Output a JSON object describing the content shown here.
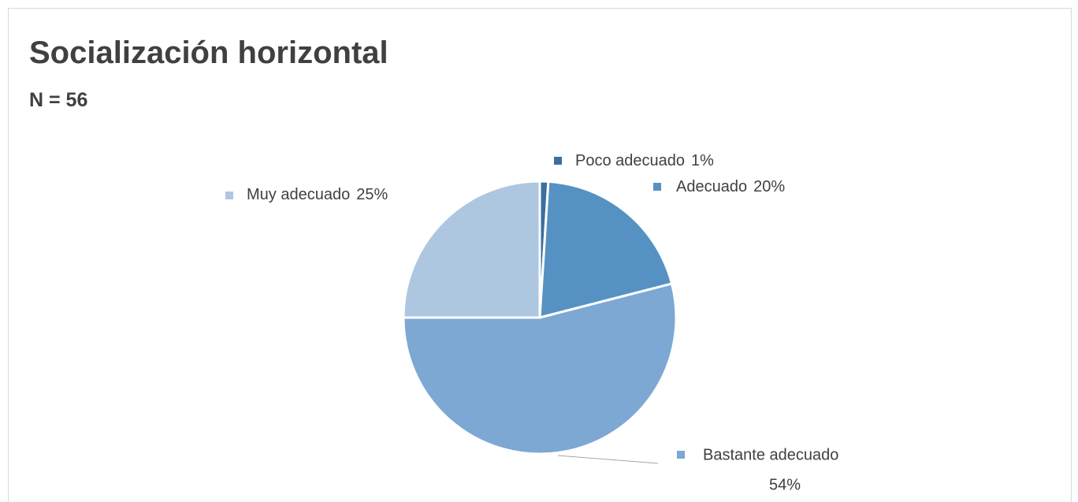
{
  "chart_data": {
    "type": "pie",
    "title": "Socialización horizontal",
    "subtitle": "N = 56",
    "categories": [
      "Poco adecuado",
      "Adecuado",
      "Bastante adecuado",
      "Muy adecuado"
    ],
    "values": [
      1,
      20,
      54,
      25
    ],
    "value_labels": [
      "1%",
      "20%",
      "54%",
      "25%"
    ],
    "colors": [
      "#3c6f9c",
      "#5592c3",
      "#7ca8d3",
      "#aec7e1"
    ]
  }
}
